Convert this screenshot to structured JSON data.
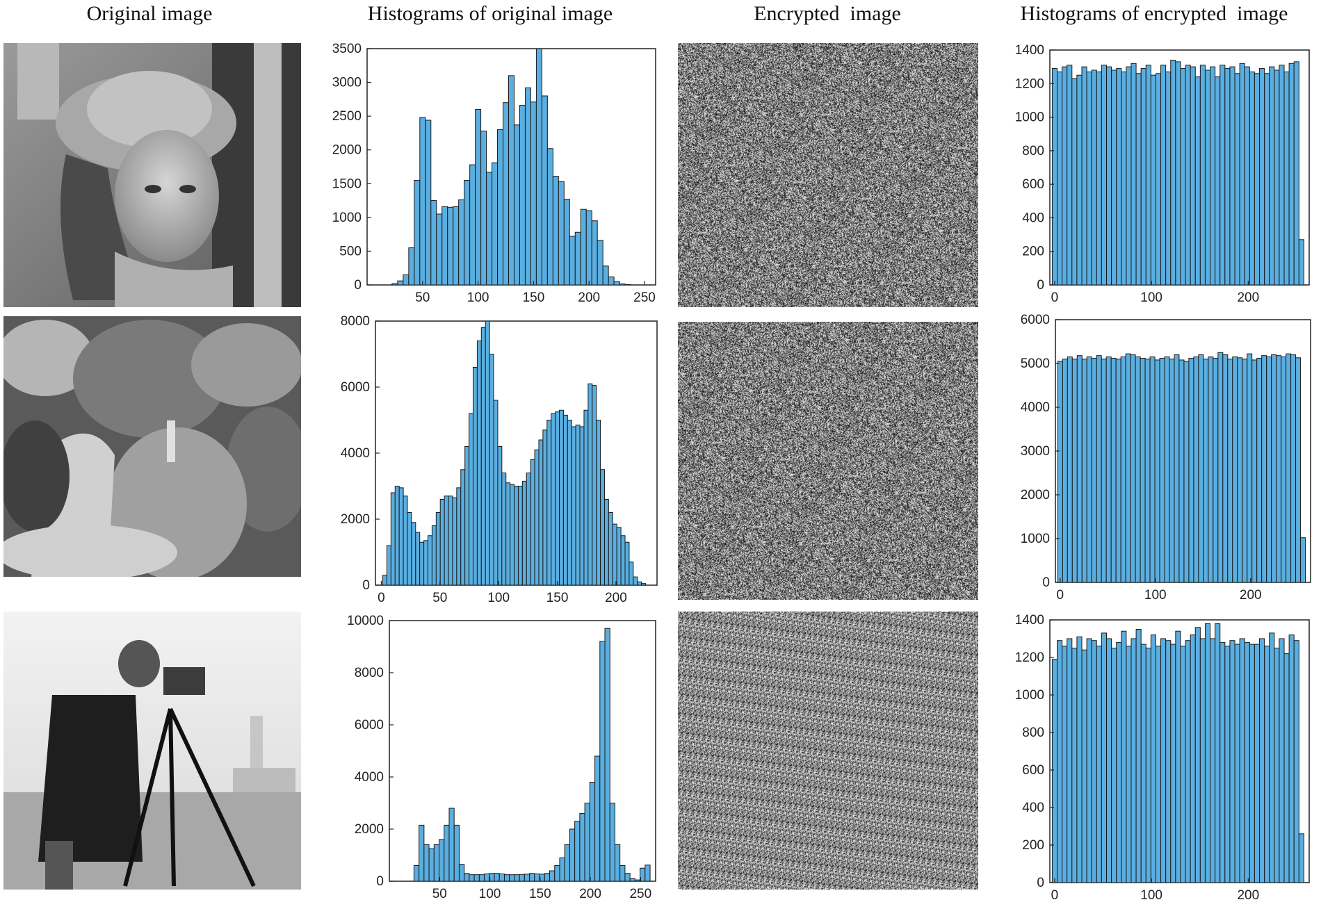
{
  "headers": {
    "original": "Original image",
    "hist_original": "Histograms of original image",
    "encrypted": "Encrypted  image",
    "hist_encrypted": "Histograms of encrypted  image"
  },
  "colors": {
    "bar_fill": "#5aaee0",
    "bar_stroke": "#1a1a1a",
    "axis": "#222222"
  },
  "images": {
    "lena": "lena-grayscale-photo",
    "peppers": "peppers-grayscale-photo",
    "cameraman": "cameraman-grayscale-photo",
    "encrypted": "encrypted-noise-image"
  },
  "chart_data": [
    {
      "id": "hist-lena-original",
      "type": "bar",
      "title": "",
      "xlabel": "",
      "ylabel": "",
      "xlim": [
        0,
        260
      ],
      "ylim": [
        0,
        3500
      ],
      "xticks": [
        50,
        100,
        150,
        200,
        250
      ],
      "yticks": [
        0,
        500,
        1000,
        1500,
        2000,
        2500,
        3000,
        3500
      ],
      "bin_width": 5,
      "x": [
        25,
        30,
        35,
        40,
        45,
        50,
        55,
        60,
        65,
        70,
        75,
        80,
        85,
        90,
        95,
        100,
        105,
        110,
        115,
        120,
        125,
        130,
        135,
        140,
        145,
        150,
        155,
        160,
        165,
        170,
        175,
        180,
        185,
        190,
        195,
        200,
        205,
        210,
        215,
        220,
        225,
        230,
        235
      ],
      "values": [
        20,
        60,
        150,
        550,
        1550,
        2480,
        2440,
        1250,
        1050,
        1160,
        1150,
        1160,
        1260,
        1550,
        1780,
        2600,
        2280,
        1670,
        1810,
        2300,
        2700,
        3100,
        2370,
        2660,
        2920,
        2710,
        3500,
        2800,
        2020,
        1610,
        1530,
        1270,
        720,
        780,
        1120,
        1100,
        950,
        660,
        280,
        120,
        50,
        15,
        5
      ]
    },
    {
      "id": "hist-peppers-original",
      "type": "bar",
      "title": "",
      "xlabel": "",
      "ylabel": "",
      "xlim": [
        -5,
        235
      ],
      "ylim": [
        0,
        8000
      ],
      "xticks": [
        0,
        50,
        100,
        150,
        200
      ],
      "yticks": [
        0,
        2000,
        4000,
        6000,
        8000
      ],
      "bin_width": 3.5,
      "x": [
        3,
        6.5,
        10,
        13.5,
        17,
        20.5,
        24,
        27.5,
        31,
        34.5,
        38,
        41.5,
        45,
        48.5,
        52,
        55.5,
        59,
        62.5,
        66,
        69.5,
        73,
        76.5,
        80,
        83.5,
        87,
        90.5,
        94,
        97.5,
        101,
        104.5,
        108,
        111.5,
        115,
        118.5,
        122,
        125.5,
        129,
        132.5,
        136,
        139.5,
        143,
        146.5,
        150,
        153.5,
        157,
        160.5,
        164,
        167.5,
        171,
        174.5,
        178,
        181.5,
        185,
        188.5,
        192,
        195.5,
        199,
        202.5,
        206,
        209.5,
        213,
        216.5,
        220,
        223.5
      ],
      "values": [
        300,
        1200,
        2800,
        3000,
        2950,
        2700,
        2200,
        1900,
        1600,
        1300,
        1350,
        1500,
        1800,
        2200,
        2600,
        2700,
        2700,
        2650,
        2950,
        3500,
        4200,
        5200,
        6600,
        7400,
        7800,
        8000,
        7000,
        5600,
        4200,
        3400,
        3100,
        3050,
        3000,
        3000,
        3150,
        3400,
        3800,
        4100,
        4400,
        4700,
        5000,
        5200,
        5250,
        5300,
        5150,
        5000,
        4800,
        4850,
        4800,
        5300,
        6100,
        6050,
        5000,
        3500,
        2600,
        2200,
        1850,
        1750,
        1500,
        1300,
        700,
        250,
        100,
        50
      ]
    },
    {
      "id": "hist-cameraman-original",
      "type": "bar",
      "title": "",
      "xlabel": "",
      "ylabel": "",
      "xlim": [
        0,
        265
      ],
      "ylim": [
        0,
        10000
      ],
      "xticks": [
        50,
        100,
        150,
        200,
        250
      ],
      "yticks": [
        0,
        2000,
        4000,
        6000,
        8000,
        10000
      ],
      "bin_width": 5,
      "x": [
        27,
        32,
        37,
        42,
        47,
        52,
        57,
        62,
        67,
        72,
        77,
        82,
        87,
        92,
        97,
        102,
        107,
        112,
        117,
        122,
        127,
        132,
        137,
        142,
        147,
        152,
        157,
        162,
        167,
        172,
        177,
        182,
        187,
        192,
        197,
        202,
        207,
        212,
        217,
        222,
        227,
        232,
        237,
        242,
        247,
        252,
        257
      ],
      "values": [
        600,
        2150,
        1400,
        1250,
        1400,
        1600,
        2150,
        2800,
        2150,
        650,
        300,
        250,
        250,
        250,
        280,
        300,
        300,
        280,
        250,
        250,
        250,
        260,
        270,
        300,
        280,
        270,
        300,
        400,
        600,
        900,
        1400,
        2000,
        2300,
        2600,
        3000,
        3800,
        4800,
        9200,
        9700,
        3000,
        1400,
        600,
        300,
        100,
        50,
        500,
        620
      ]
    },
    {
      "id": "hist-lena-encrypted",
      "type": "bar",
      "title": "",
      "xlabel": "",
      "ylabel": "",
      "xlim": [
        -5,
        263
      ],
      "ylim": [
        0,
        1400
      ],
      "xticks": [
        0,
        100,
        200
      ],
      "yticks": [
        0,
        200,
        400,
        600,
        800,
        1000,
        1200,
        1400
      ],
      "bin_width": 5.1,
      "x": [
        0,
        5.1,
        10.2,
        15.3,
        20.4,
        25.5,
        30.6,
        35.7,
        40.8,
        45.9,
        51,
        56.1,
        61.2,
        66.3,
        71.4,
        76.5,
        81.6,
        86.7,
        91.8,
        96.9,
        102,
        107.1,
        112.2,
        117.3,
        122.4,
        127.5,
        132.6,
        137.7,
        142.8,
        147.9,
        153,
        158.1,
        163.2,
        168.3,
        173.4,
        178.5,
        183.6,
        188.7,
        193.8,
        198.9,
        204,
        209.1,
        214.2,
        219.3,
        224.4,
        229.5,
        234.6,
        239.7,
        244.8,
        249.9,
        255
      ],
      "values": [
        1290,
        1270,
        1300,
        1310,
        1230,
        1250,
        1300,
        1270,
        1280,
        1270,
        1310,
        1300,
        1280,
        1290,
        1270,
        1300,
        1320,
        1260,
        1290,
        1310,
        1250,
        1260,
        1310,
        1270,
        1340,
        1330,
        1290,
        1310,
        1300,
        1240,
        1310,
        1280,
        1300,
        1240,
        1310,
        1290,
        1300,
        1260,
        1320,
        1300,
        1270,
        1260,
        1290,
        1260,
        1300,
        1280,
        1310,
        1270,
        1320,
        1330,
        270
      ]
    },
    {
      "id": "hist-peppers-encrypted",
      "type": "bar",
      "title": "",
      "xlabel": "",
      "ylabel": "",
      "xlim": [
        -5,
        263
      ],
      "ylim": [
        0,
        6000
      ],
      "xticks": [
        0,
        100,
        200
      ],
      "yticks": [
        0,
        1000,
        2000,
        3000,
        4000,
        5000,
        6000
      ],
      "bin_width": 5.1,
      "x": [
        0,
        5.1,
        10.2,
        15.3,
        20.4,
        25.5,
        30.6,
        35.7,
        40.8,
        45.9,
        51,
        56.1,
        61.2,
        66.3,
        71.4,
        76.5,
        81.6,
        86.7,
        91.8,
        96.9,
        102,
        107.1,
        112.2,
        117.3,
        122.4,
        127.5,
        132.6,
        137.7,
        142.8,
        147.9,
        153,
        158.1,
        163.2,
        168.3,
        173.4,
        178.5,
        183.6,
        188.7,
        193.8,
        198.9,
        204,
        209.1,
        214.2,
        219.3,
        224.4,
        229.5,
        234.6,
        239.7,
        244.8,
        249.9,
        255
      ],
      "values": [
        5050,
        5100,
        5150,
        5100,
        5180,
        5100,
        5150,
        5120,
        5180,
        5100,
        5150,
        5120,
        5100,
        5150,
        5220,
        5200,
        5150,
        5120,
        5100,
        5150,
        5080,
        5120,
        5150,
        5100,
        5200,
        5080,
        5050,
        5120,
        5150,
        5200,
        5100,
        5150,
        5120,
        5250,
        5200,
        5100,
        5150,
        5130,
        5100,
        5220,
        5080,
        5120,
        5180,
        5150,
        5200,
        5180,
        5150,
        5220,
        5200,
        5130,
        1020
      ]
    },
    {
      "id": "hist-cameraman-encrypted",
      "type": "bar",
      "title": "",
      "xlabel": "",
      "ylabel": "",
      "xlim": [
        -5,
        263
      ],
      "ylim": [
        0,
        1400
      ],
      "xticks": [
        0,
        100,
        200
      ],
      "yticks": [
        0,
        200,
        400,
        600,
        800,
        1000,
        1200,
        1400
      ],
      "bin_width": 5.1,
      "x": [
        0,
        5.1,
        10.2,
        15.3,
        20.4,
        25.5,
        30.6,
        35.7,
        40.8,
        45.9,
        51,
        56.1,
        61.2,
        66.3,
        71.4,
        76.5,
        81.6,
        86.7,
        91.8,
        96.9,
        102,
        107.1,
        112.2,
        117.3,
        122.4,
        127.5,
        132.6,
        137.7,
        142.8,
        147.9,
        153,
        158.1,
        163.2,
        168.3,
        173.4,
        178.5,
        183.6,
        188.7,
        193.8,
        198.9,
        204,
        209.1,
        214.2,
        219.3,
        224.4,
        229.5,
        234.6,
        239.7,
        244.8,
        249.9,
        255
      ],
      "values": [
        1190,
        1290,
        1260,
        1300,
        1250,
        1310,
        1240,
        1300,
        1290,
        1260,
        1330,
        1300,
        1250,
        1280,
        1340,
        1260,
        1300,
        1350,
        1270,
        1250,
        1320,
        1260,
        1300,
        1290,
        1270,
        1340,
        1260,
        1290,
        1320,
        1360,
        1300,
        1380,
        1300,
        1380,
        1280,
        1260,
        1290,
        1270,
        1300,
        1280,
        1270,
        1270,
        1300,
        1260,
        1330,
        1250,
        1300,
        1220,
        1320,
        1290,
        260
      ]
    }
  ]
}
